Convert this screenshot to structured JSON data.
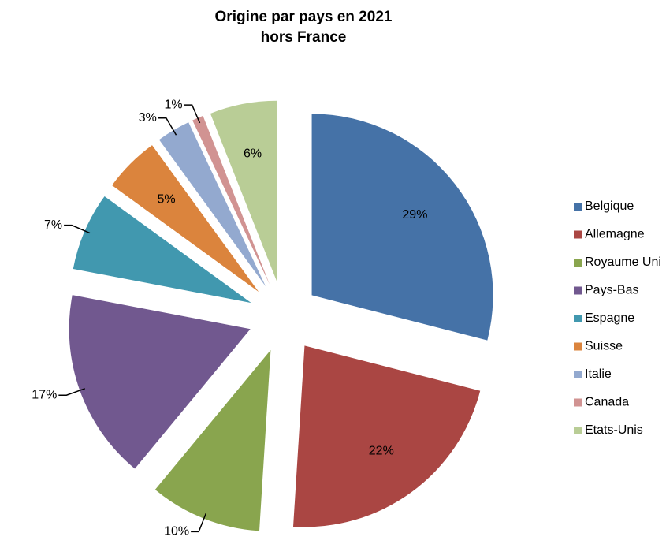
{
  "chart_data": {
    "type": "pie",
    "title": [
      "Origine par pays en 2021",
      "hors France"
    ],
    "categories": [
      "Belgique",
      "Allemagne",
      "Royaume Uni",
      "Pays-Bas",
      "Espagne",
      "Suisse",
      "Italie",
      "Canada",
      "Etats-Unis"
    ],
    "values": [
      29,
      22,
      10,
      17,
      7,
      5,
      3,
      1,
      6
    ],
    "value_labels": [
      "29%",
      "22%",
      "10%",
      "17%",
      "7%",
      "5%",
      "3%",
      "1%",
      "6%"
    ],
    "colors": [
      "#4572a7",
      "#aa4643",
      "#89a54e",
      "#71588f",
      "#4198af",
      "#db843d",
      "#93a9cf",
      "#d19392",
      "#b9cd96"
    ],
    "legend": "right"
  }
}
